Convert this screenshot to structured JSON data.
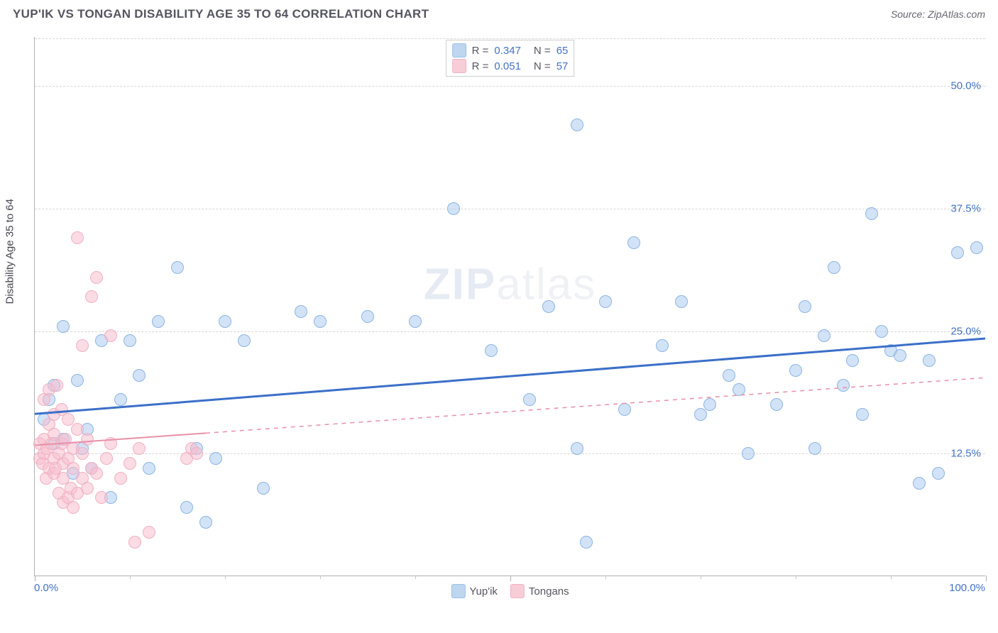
{
  "header": {
    "title": "YUP'IK VS TONGAN DISABILITY AGE 35 TO 64 CORRELATION CHART",
    "source_prefix": "Source: ",
    "source_name": "ZipAtlas.com"
  },
  "chart": {
    "type": "scatter",
    "yaxis_title": "Disability Age 35 to 64",
    "xlim": [
      0,
      100
    ],
    "ylim": [
      0,
      55
    ],
    "xlabel_min": "0.0%",
    "xlabel_max": "100.0%",
    "yticks": [
      {
        "value": 12.5,
        "label": "12.5%"
      },
      {
        "value": 25.0,
        "label": "25.0%"
      },
      {
        "value": 37.5,
        "label": "37.5%"
      },
      {
        "value": 50.0,
        "label": "50.0%"
      }
    ],
    "xticks_major": [
      0,
      50,
      100
    ],
    "xticks_minor": [
      10,
      20,
      30,
      40,
      60,
      70,
      80,
      90
    ],
    "background_color": "#ffffff",
    "grid_color": "#d8d8d8",
    "axis_color": "#b0b0b0",
    "watermark_text_bold": "ZIP",
    "watermark_text_rest": "atlas",
    "marker_radius": 9,
    "marker_stroke_width": 1.2,
    "series": [
      {
        "name": "Yup'ik",
        "fill": "rgba(173,204,240,0.55)",
        "stroke": "#8db4e2",
        "swatch_fill": "#bfd6f0",
        "swatch_border": "#9cbfe6",
        "r": 0.347,
        "n": 65,
        "trend": {
          "x1": 0,
          "y1": 16.5,
          "x2": 100,
          "y2": 24.2,
          "solid_until_x": 100,
          "color": "#3b6fc9",
          "width": 3
        },
        "points": [
          [
            1,
            16
          ],
          [
            1.5,
            18
          ],
          [
            2,
            19.5
          ],
          [
            2,
            13.5
          ],
          [
            3,
            14
          ],
          [
            3,
            25.5
          ],
          [
            4,
            10.5
          ],
          [
            4.5,
            20
          ],
          [
            5,
            13
          ],
          [
            5.5,
            15
          ],
          [
            6,
            11
          ],
          [
            7,
            24
          ],
          [
            8,
            8
          ],
          [
            9,
            18
          ],
          [
            10,
            24
          ],
          [
            11,
            20.5
          ],
          [
            12,
            11
          ],
          [
            13,
            26
          ],
          [
            15,
            31.5
          ],
          [
            16,
            7
          ],
          [
            17,
            13
          ],
          [
            18,
            5.5
          ],
          [
            19,
            12
          ],
          [
            20,
            26
          ],
          [
            22,
            24
          ],
          [
            24,
            9
          ],
          [
            28,
            27
          ],
          [
            30,
            26
          ],
          [
            35,
            26.5
          ],
          [
            40,
            26
          ],
          [
            44,
            37.5
          ],
          [
            48,
            23
          ],
          [
            52,
            18
          ],
          [
            54,
            27.5
          ],
          [
            57,
            13
          ],
          [
            57,
            46
          ],
          [
            58,
            3.5
          ],
          [
            60,
            28
          ],
          [
            62,
            17
          ],
          [
            63,
            34
          ],
          [
            66,
            23.5
          ],
          [
            68,
            28
          ],
          [
            70,
            16.5
          ],
          [
            71,
            17.5
          ],
          [
            73,
            20.5
          ],
          [
            74,
            19
          ],
          [
            75,
            12.5
          ],
          [
            78,
            17.5
          ],
          [
            80,
            21
          ],
          [
            81,
            27.5
          ],
          [
            82,
            13
          ],
          [
            83,
            24.5
          ],
          [
            84,
            31.5
          ],
          [
            85,
            19.5
          ],
          [
            86,
            22
          ],
          [
            87,
            16.5
          ],
          [
            88,
            37
          ],
          [
            89,
            25
          ],
          [
            90,
            23
          ],
          [
            91,
            22.5
          ],
          [
            93,
            9.5
          ],
          [
            94,
            22
          ],
          [
            95,
            10.5
          ],
          [
            97,
            33
          ],
          [
            99,
            33.5
          ]
        ]
      },
      {
        "name": "Tongans",
        "fill": "rgba(248,190,205,0.55)",
        "stroke": "#efb1c2",
        "swatch_fill": "#f7cdd8",
        "swatch_border": "#efb1c2",
        "r": 0.051,
        "n": 57,
        "trend": {
          "x1": 0,
          "y1": 13.3,
          "x2": 100,
          "y2": 20.2,
          "solid_until_x": 18,
          "color": "#e98fa7",
          "width": 2
        },
        "points": [
          [
            0.5,
            12
          ],
          [
            0.5,
            13.5
          ],
          [
            0.8,
            11.5
          ],
          [
            1,
            12.5
          ],
          [
            1,
            14
          ],
          [
            1,
            18
          ],
          [
            1.2,
            10
          ],
          [
            1.3,
            13
          ],
          [
            1.5,
            11
          ],
          [
            1.5,
            15.5
          ],
          [
            1.5,
            19
          ],
          [
            1.8,
            13.5
          ],
          [
            2,
            10.5
          ],
          [
            2,
            12
          ],
          [
            2,
            14.5
          ],
          [
            2,
            16.5
          ],
          [
            2.2,
            11
          ],
          [
            2.3,
            19.5
          ],
          [
            2.5,
            8.5
          ],
          [
            2.5,
            12.5
          ],
          [
            2.8,
            13.5
          ],
          [
            2.8,
            17
          ],
          [
            3,
            7.5
          ],
          [
            3,
            10
          ],
          [
            3,
            11.5
          ],
          [
            3.2,
            14
          ],
          [
            3.5,
            8
          ],
          [
            3.5,
            12
          ],
          [
            3.5,
            16
          ],
          [
            3.8,
            9
          ],
          [
            4,
            7
          ],
          [
            4,
            11
          ],
          [
            4,
            13
          ],
          [
            4.5,
            8.5
          ],
          [
            4.5,
            15
          ],
          [
            4.5,
            34.5
          ],
          [
            5,
            10
          ],
          [
            5,
            12.5
          ],
          [
            5,
            23.5
          ],
          [
            5.5,
            9
          ],
          [
            5.5,
            14
          ],
          [
            6,
            11
          ],
          [
            6,
            28.5
          ],
          [
            6.5,
            10.5
          ],
          [
            6.5,
            30.5
          ],
          [
            7,
            8
          ],
          [
            7.5,
            12
          ],
          [
            8,
            13.5
          ],
          [
            8,
            24.5
          ],
          [
            9,
            10
          ],
          [
            10,
            11.5
          ],
          [
            10.5,
            3.5
          ],
          [
            11,
            13
          ],
          [
            12,
            4.5
          ],
          [
            16,
            12
          ],
          [
            16.5,
            13
          ],
          [
            17,
            12.5
          ]
        ]
      }
    ],
    "legend_top": {
      "r_label": "R =",
      "n_label": "N ="
    },
    "legend_bottom": [
      "Yup'ik",
      "Tongans"
    ]
  }
}
